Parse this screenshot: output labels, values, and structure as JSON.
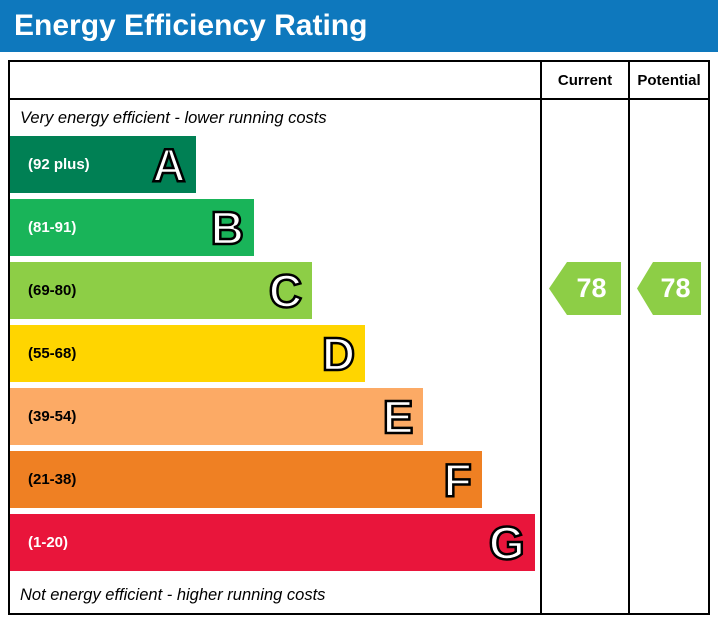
{
  "header": {
    "title": "Energy Efficiency Rating"
  },
  "columns": {
    "current": "Current",
    "potential": "Potential"
  },
  "captions": {
    "top": "Very energy efficient - lower running costs",
    "bottom": "Not energy efficient - higher running costs"
  },
  "colors": {
    "title_bar": "#0e78bd",
    "border": "#000000",
    "arrow_text": "#ffffff"
  },
  "chart_data": {
    "type": "bar",
    "title": "Energy Efficiency Rating",
    "categories": [
      "A",
      "B",
      "C",
      "D",
      "E",
      "F",
      "G"
    ],
    "bands": [
      {
        "letter": "A",
        "range": "(92 plus)",
        "color": "#008054",
        "width_pct": 35,
        "label_color": "#ffffff"
      },
      {
        "letter": "B",
        "range": "(81-91)",
        "color": "#19b459",
        "width_pct": 46,
        "label_color": "#ffffff"
      },
      {
        "letter": "C",
        "range": "(69-80)",
        "color": "#8dce46",
        "width_pct": 57,
        "label_color": "#000000"
      },
      {
        "letter": "D",
        "range": "(55-68)",
        "color": "#ffd500",
        "width_pct": 67,
        "label_color": "#000000"
      },
      {
        "letter": "E",
        "range": "(39-54)",
        "color": "#fcaa65",
        "width_pct": 78,
        "label_color": "#000000"
      },
      {
        "letter": "F",
        "range": "(21-38)",
        "color": "#ef8023",
        "width_pct": 89,
        "label_color": "#000000"
      },
      {
        "letter": "G",
        "range": "(1-20)",
        "color": "#e9153b",
        "width_pct": 99,
        "label_color": "#ffffff"
      }
    ],
    "current": {
      "label": "Current",
      "value": 78,
      "band": "C",
      "arrow_color": "#8dce46"
    },
    "potential": {
      "label": "Potential",
      "value": 78,
      "band": "C",
      "arrow_color": "#8dce46"
    },
    "legend_position": "none",
    "grid": false
  }
}
